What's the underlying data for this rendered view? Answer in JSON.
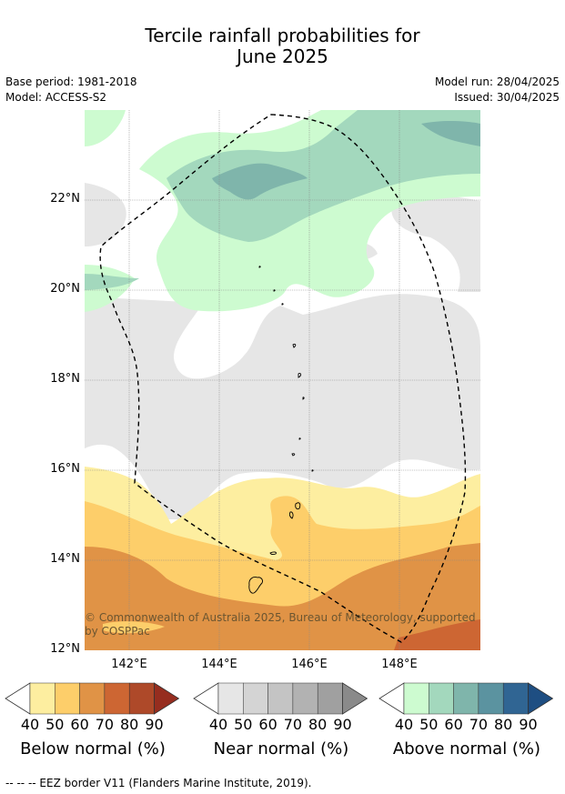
{
  "title": {
    "line1": "Tercile rainfall probabilities for",
    "line2": "June 2025"
  },
  "meta": {
    "base_period": "Base period: 1981-2018",
    "model": "Model: ACCESS-S2",
    "model_run": "Model run: 28/04/2025",
    "issued": "Issued: 30/04/2025"
  },
  "map": {
    "lat_labels": [
      "22°N",
      "20°N",
      "18°N",
      "16°N",
      "14°N",
      "12°N"
    ],
    "lon_labels": [
      "142°E",
      "144°E",
      "146°E",
      "148°E"
    ],
    "copyright_line1": "© Commonwealth of Australia 2025, Bureau of Meteorology, supported",
    "copyright_line2": "by COSPPac"
  },
  "colorbars": [
    {
      "label": "Below normal (%)",
      "ticks": [
        "40",
        "50",
        "60",
        "70",
        "80",
        "90"
      ],
      "colors": [
        "#ffffff",
        "#fdeea0",
        "#fdce6a",
        "#e09346",
        "#cd6633",
        "#ae4929",
        "#962d1f"
      ]
    },
    {
      "label": "Near normal (%)",
      "ticks": [
        "40",
        "50",
        "60",
        "70",
        "80",
        "90"
      ],
      "colors": [
        "#ffffff",
        "#e6e6e6",
        "#d4d4d4",
        "#c4c4c4",
        "#b2b2b2",
        "#a0a0a0",
        "#8a8a8a"
      ]
    },
    {
      "label": "Above normal (%)",
      "ticks": [
        "40",
        "50",
        "60",
        "70",
        "80",
        "90"
      ],
      "colors": [
        "#ffffff",
        "#cdfbd0",
        "#a3d8bd",
        "#7fb5ab",
        "#5b93a0",
        "#306593",
        "#1e4e82"
      ]
    }
  ],
  "footer": "--  --  -- EEZ border V11 (Flanders Marine Institute, 2019)."
}
